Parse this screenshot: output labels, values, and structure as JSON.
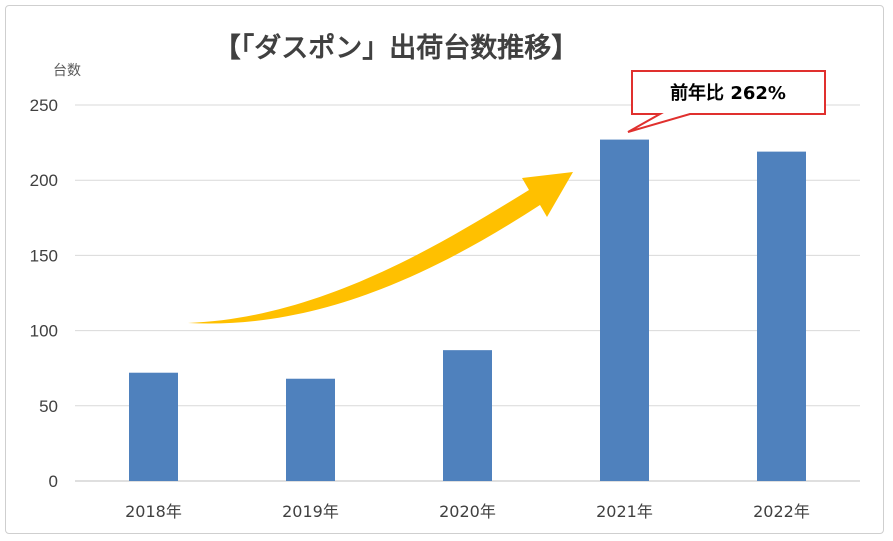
{
  "chart_data": {
    "type": "bar",
    "title": "【「ダスポン」出荷台数推移】",
    "xlabel": "",
    "ylabel": "台数",
    "categories": [
      "2018年",
      "2019年",
      "2020年",
      "2021年",
      "2022年"
    ],
    "values": [
      72,
      68,
      87,
      227,
      219
    ],
    "ylim": [
      0,
      250
    ],
    "yticks": [
      "0",
      "50",
      "100",
      "150",
      "200",
      "250"
    ],
    "grid": true,
    "legend": "none",
    "bar_color": "#4f81bd",
    "annotations": [
      {
        "text": "前年比 262%",
        "target": "2021年",
        "border_color": "#e0302e"
      },
      {
        "type": "arrow",
        "color": "#ffc000",
        "from": "2018年",
        "to": "2021年"
      }
    ]
  }
}
